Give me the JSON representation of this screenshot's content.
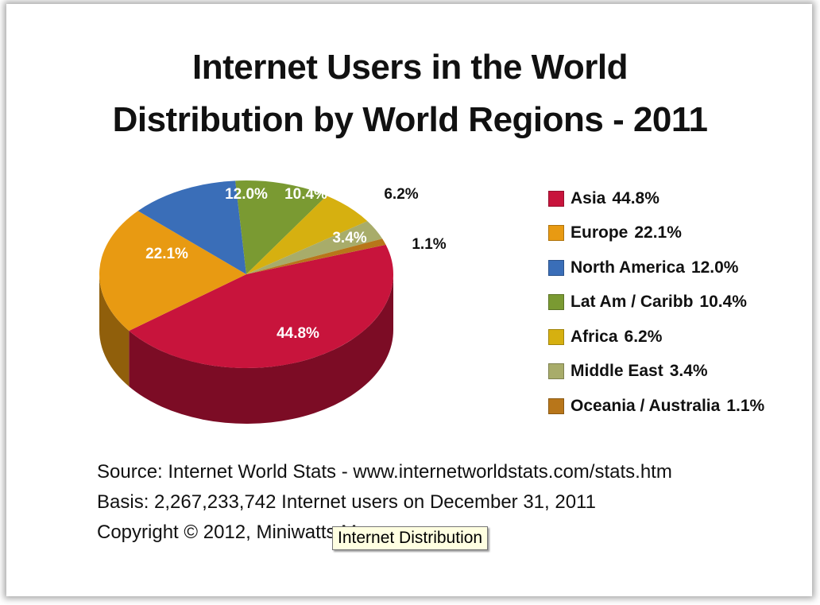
{
  "title_line1": "Internet Users in the World",
  "title_line2": "Distribution by World Regions - 2011",
  "source": "Source: Internet World Stats -  www.internetworldstats.com/stats.htm",
  "basis": "Basis: 2,267,233,742 Internet users on December 31, 2011",
  "copyright": "Copyright © 2012, Miniwatts M",
  "tooltip": "Internet Distribution",
  "chart_data": {
    "type": "pie",
    "title": "Internet Users in the World Distribution by World Regions - 2011",
    "legend_position": "right",
    "series": [
      {
        "name": "Asia",
        "value": 44.8,
        "label": "44.8%",
        "color": "#c8143c"
      },
      {
        "name": "Europe",
        "value": 22.1,
        "label": "22.1%",
        "color": "#e89a12"
      },
      {
        "name": "North America",
        "value": 12.0,
        "label": "12.0%",
        "color": "#3a6eb8"
      },
      {
        "name": "Lat Am / Caribb",
        "value": 10.4,
        "label": "10.4%",
        "color": "#7a9a32"
      },
      {
        "name": "Africa",
        "value": 6.2,
        "label": "6.2%",
        "color": "#d6b010"
      },
      {
        "name": "Middle East",
        "value": 3.4,
        "label": "3.4%",
        "color": "#a8ac6a"
      },
      {
        "name": "Oceania / Australia",
        "value": 1.1,
        "label": "1.1%",
        "color": "#b8761a"
      }
    ]
  }
}
